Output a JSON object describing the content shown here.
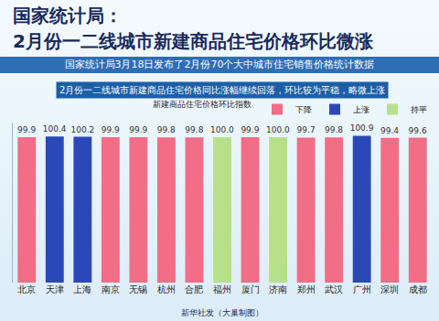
{
  "chart_data": {
    "type": "bar",
    "title": [
      "国家统计局：",
      "2月份一二线城市新建商品住宅价格环比微涨"
    ],
    "subtitle": "国家统计局3月18日发布了2月份70个大中城市住宅销售价格统计数据",
    "note": "2月份一二线城市新建商品住宅价格同比涨幅继续回落，环比较为平稳，略微上涨",
    "legend_title": "新建商品住宅价格环比指数",
    "source": "新华社发（大巢制图）",
    "categories": [
      "北京",
      "天津",
      "上海",
      "南京",
      "无锡",
      "杭州",
      "合肥",
      "福州",
      "厦门",
      "济南",
      "郑州",
      "武汉",
      "广州",
      "深圳",
      "成都"
    ],
    "series": [
      {
        "name": "下降",
        "color": "#f26d86",
        "values": [
          99.9,
          null,
          null,
          99.9,
          99.9,
          99.8,
          99.8,
          null,
          99.9,
          null,
          99.7,
          99.8,
          null,
          99.4,
          99.6
        ],
        "value_labels": [
          "99.9",
          null,
          null,
          "99.9",
          "99.9",
          "99.8",
          "99.8",
          null,
          "99.9",
          null,
          "99.7",
          "99.8",
          null,
          "99.4",
          "99.6"
        ]
      },
      {
        "name": "上涨",
        "color": "#2b48b8",
        "values": [
          null,
          100.4,
          100.2,
          null,
          null,
          null,
          null,
          null,
          null,
          null,
          null,
          null,
          100.9,
          null,
          null
        ],
        "value_labels": [
          null,
          "100.4",
          "100.2",
          null,
          null,
          null,
          null,
          null,
          null,
          null,
          null,
          null,
          "100.9",
          null,
          null
        ]
      },
      {
        "name": "持平",
        "color": "#b8e08a",
        "values": [
          null,
          null,
          null,
          null,
          null,
          null,
          null,
          100.0,
          null,
          100.0,
          null,
          null,
          null,
          null,
          null
        ],
        "value_labels": [
          null,
          null,
          null,
          null,
          null,
          null,
          null,
          "100.0",
          null,
          "100.0",
          null,
          null,
          null,
          null,
          null
        ]
      }
    ],
    "ylim": [
      0,
      110
    ],
    "yticks": [],
    "tick_labels": "x",
    "data_labels": true,
    "legend": "top right",
    "grid": false
  }
}
